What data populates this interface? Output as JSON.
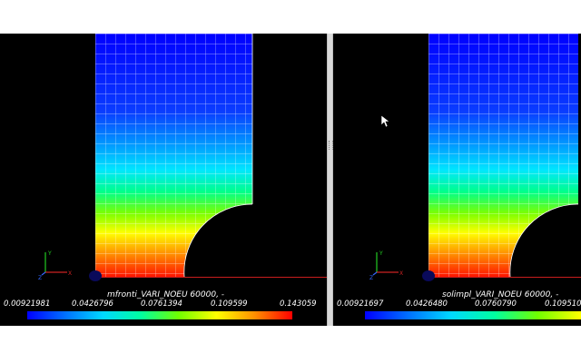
{
  "views": [
    {
      "id": "left",
      "field_title": "mfronti_VARI_NOEU 60000, -",
      "scalar_bar": {
        "ticks": [
          "0.00921981",
          "0.0426796",
          "0.0761394",
          "0.109599",
          "0.143059"
        ]
      }
    },
    {
      "id": "right",
      "field_title": "solimpl_VARI_NOEU 60000, -",
      "scalar_bar": {
        "ticks": [
          "0.00921697",
          "0.0426480",
          "0.0760790",
          "0.109510"
        ]
      }
    }
  ],
  "colors": {
    "background": "#000000",
    "colormap": [
      "#0000ff",
      "#0080ff",
      "#00ffff",
      "#00ff80",
      "#80ff00",
      "#ffff00",
      "#ff8000",
      "#ff0000"
    ]
  }
}
